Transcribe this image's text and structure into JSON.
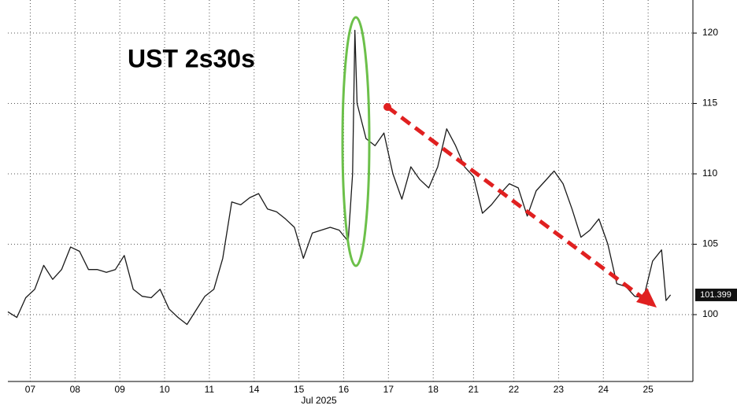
{
  "chart_data": {
    "type": "line",
    "title": "UST 2s30s",
    "x_label": "Jul 2025",
    "x": [
      0,
      0.2,
      0.4,
      0.6,
      0.8,
      1.0,
      1.2,
      1.4,
      1.6,
      1.8,
      2.0,
      2.2,
      2.4,
      2.6,
      2.8,
      3.0,
      3.2,
      3.4,
      3.6,
      3.8,
      4.0,
      4.2,
      4.4,
      4.6,
      4.8,
      5.0,
      5.2,
      5.4,
      5.6,
      5.8,
      6.0,
      6.2,
      6.4,
      6.6,
      6.8,
      7.0,
      7.2,
      7.4,
      7.6,
      7.7,
      7.75,
      7.8,
      8.0,
      8.2,
      8.4,
      8.6,
      8.8,
      9.0,
      9.2,
      9.4,
      9.6,
      9.8,
      10.0,
      10.2,
      10.4,
      10.6,
      10.8,
      11.0,
      11.2,
      11.4,
      11.6,
      11.8,
      12.0,
      12.2,
      12.4,
      12.6,
      12.8,
      13.0,
      13.2,
      13.4,
      13.6,
      13.8,
      14.0,
      14.2,
      14.4,
      14.6,
      14.7,
      14.8
    ],
    "series": [
      {
        "name": "UST 2s30s",
        "color": "#1a1a1a",
        "values": [
          100.2,
          99.8,
          101.2,
          101.8,
          103.5,
          102.5,
          103.2,
          104.8,
          104.5,
          103.2,
          103.2,
          103.0,
          103.2,
          104.2,
          101.8,
          101.3,
          101.2,
          101.8,
          100.4,
          99.8,
          99.3,
          100.3,
          101.3,
          101.8,
          104.0,
          108.0,
          107.8,
          108.3,
          108.6,
          107.5,
          107.3,
          106.8,
          106.2,
          104.0,
          105.8,
          106.0,
          106.2,
          106.0,
          105.2,
          110.0,
          120.2,
          115.0,
          112.5,
          112.0,
          112.9,
          110.0,
          108.2,
          110.5,
          109.6,
          109.0,
          110.5,
          113.2,
          112.0,
          110.5,
          109.8,
          107.2,
          107.8,
          108.6,
          109.3,
          109.0,
          107.0,
          108.8,
          109.5,
          110.2,
          109.3,
          107.5,
          105.5,
          106.0,
          106.8,
          105.0,
          102.2,
          102.0,
          101.3,
          101.2,
          103.8,
          104.6,
          101.0,
          101.4
        ]
      }
    ],
    "last_value": 101.399,
    "xlim": [
      0,
      15.3
    ],
    "xticks": [
      {
        "value": 0.5,
        "label": "07"
      },
      {
        "value": 1.5,
        "label": "08"
      },
      {
        "value": 2.5,
        "label": "09"
      },
      {
        "value": 3.5,
        "label": "10"
      },
      {
        "value": 4.5,
        "label": "11"
      },
      {
        "value": 5.5,
        "label": "14"
      },
      {
        "value": 6.5,
        "label": "15"
      },
      {
        "value": 7.5,
        "label": "16"
      },
      {
        "value": 8.5,
        "label": "17"
      },
      {
        "value": 9.5,
        "label": "18"
      },
      {
        "value": 10.4,
        "label": "21"
      },
      {
        "value": 11.3,
        "label": "22"
      },
      {
        "value": 12.3,
        "label": "23"
      },
      {
        "value": 13.3,
        "label": "24"
      },
      {
        "value": 14.3,
        "label": "25"
      }
    ],
    "ylim": [
      95.25,
      122.35
    ],
    "yticks": [
      100,
      105,
      110,
      115,
      120
    ],
    "grid": true
  }
}
